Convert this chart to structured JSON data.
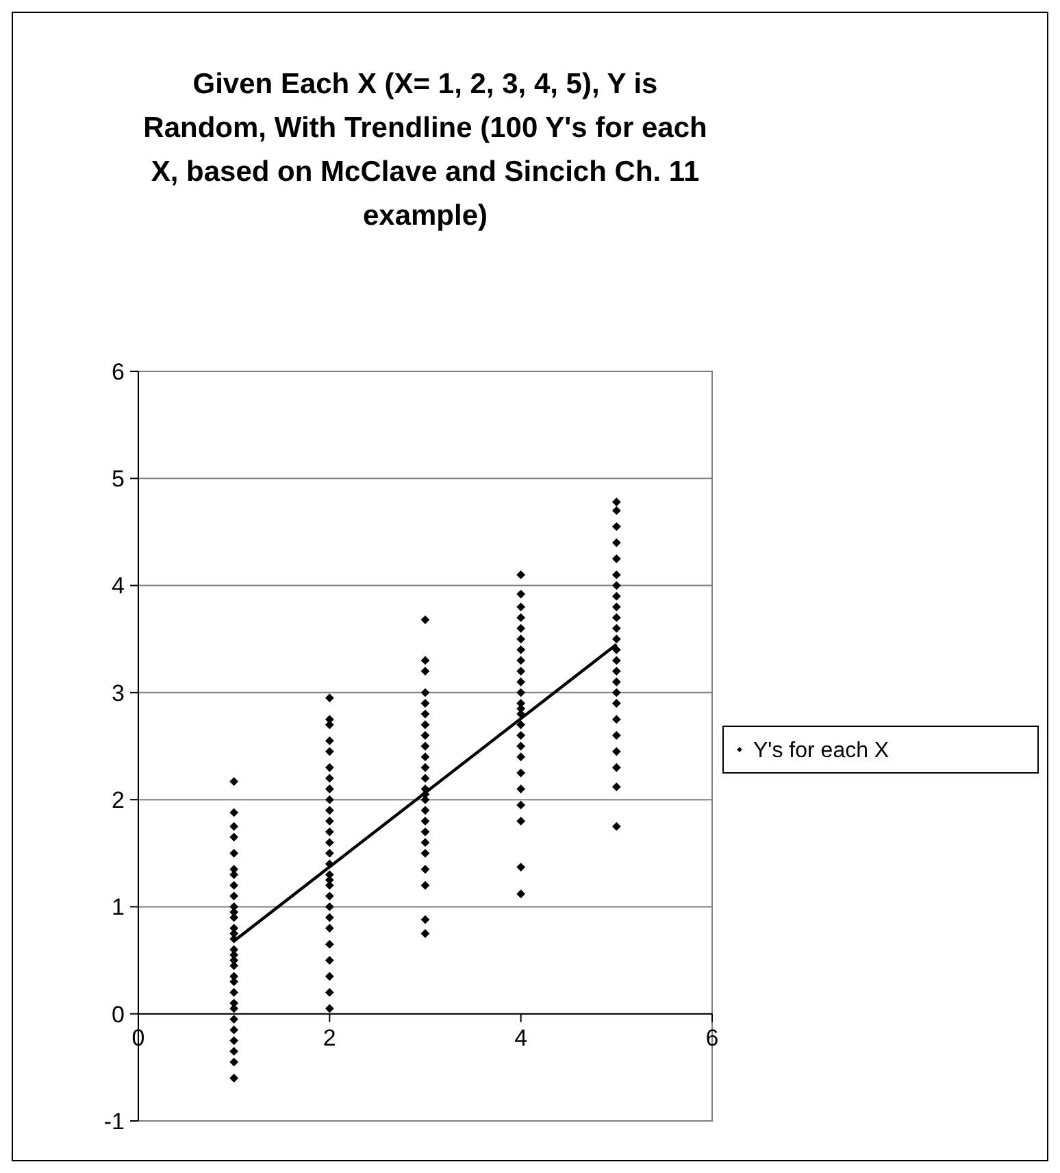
{
  "chart_data": {
    "type": "scatter",
    "title": "Given Each X (X= 1, 2, 3, 4, 5), Y is Random, With Trendline (100 Y's for each X, based on McClave and Sincich Ch. 11 example)",
    "xlim": [
      0,
      6
    ],
    "xticks": [
      0,
      2,
      4,
      6
    ],
    "ylim": [
      -1,
      6
    ],
    "yticks": [
      -1,
      0,
      1,
      2,
      3,
      4,
      5,
      6
    ],
    "grid": "y",
    "legend": "right",
    "series": [
      {
        "name": "Y's for each X",
        "color": "#000000",
        "marker": "diamond",
        "x": [
          1,
          1,
          1,
          1,
          1,
          1,
          1,
          1,
          1,
          1,
          1,
          1,
          1,
          1,
          1,
          1,
          1,
          1,
          1,
          1,
          1,
          1,
          1,
          1,
          1,
          1,
          1,
          1,
          1,
          1,
          2,
          2,
          2,
          2,
          2,
          2,
          2,
          2,
          2,
          2,
          2,
          2,
          2,
          2,
          2,
          2,
          2,
          2,
          2,
          2,
          2,
          2,
          2,
          2,
          2,
          2,
          2,
          3,
          3,
          3,
          3,
          3,
          3,
          3,
          3,
          3,
          3,
          3,
          3,
          3,
          3,
          3,
          3,
          3,
          3,
          3,
          3,
          3,
          3,
          3,
          3,
          4,
          4,
          4,
          4,
          4,
          4,
          4,
          4,
          4,
          4,
          4,
          4,
          4,
          4,
          4,
          4,
          4,
          4,
          4,
          4,
          4,
          4,
          4,
          4,
          5,
          5,
          5,
          5,
          5,
          5,
          5,
          5,
          5,
          5,
          5,
          5,
          5,
          5,
          5,
          5,
          5,
          5,
          5,
          5,
          5,
          5,
          5,
          5
        ],
        "values": [
          -0.6,
          -0.45,
          -0.35,
          -0.25,
          -0.15,
          -0.05,
          0.05,
          0.1,
          0.2,
          0.3,
          0.35,
          0.45,
          0.5,
          0.55,
          0.6,
          0.7,
          0.75,
          0.8,
          0.9,
          0.95,
          1.0,
          1.1,
          1.2,
          1.3,
          1.35,
          1.5,
          1.65,
          1.75,
          1.88,
          2.17,
          0.05,
          0.2,
          0.35,
          0.5,
          0.65,
          0.8,
          0.9,
          1.0,
          1.1,
          1.2,
          1.25,
          1.3,
          1.4,
          1.5,
          1.6,
          1.7,
          1.8,
          1.9,
          2.0,
          2.1,
          2.2,
          2.3,
          2.45,
          2.55,
          2.7,
          2.75,
          2.95,
          0.75,
          0.88,
          1.2,
          1.35,
          1.5,
          1.6,
          1.7,
          1.8,
          1.9,
          2.0,
          2.05,
          2.1,
          2.2,
          2.3,
          2.4,
          2.5,
          2.6,
          2.7,
          2.8,
          2.9,
          3.0,
          3.2,
          3.3,
          3.68,
          1.12,
          1.37,
          1.8,
          1.95,
          2.1,
          2.25,
          2.4,
          2.5,
          2.6,
          2.7,
          2.8,
          2.85,
          2.9,
          3.0,
          3.1,
          3.2,
          3.3,
          3.4,
          3.5,
          3.6,
          3.7,
          3.8,
          3.92,
          4.1,
          1.75,
          2.12,
          2.3,
          2.45,
          2.6,
          2.75,
          2.9,
          3.0,
          3.1,
          3.2,
          3.3,
          3.4,
          3.5,
          3.6,
          3.7,
          3.8,
          3.9,
          4.0,
          4.1,
          4.25,
          4.4,
          4.55,
          4.7,
          4.78
        ]
      },
      {
        "type": "line",
        "color": "#000000",
        "marker": "none",
        "x": [
          1,
          5
        ],
        "values": [
          0.68,
          3.45
        ]
      }
    ]
  }
}
